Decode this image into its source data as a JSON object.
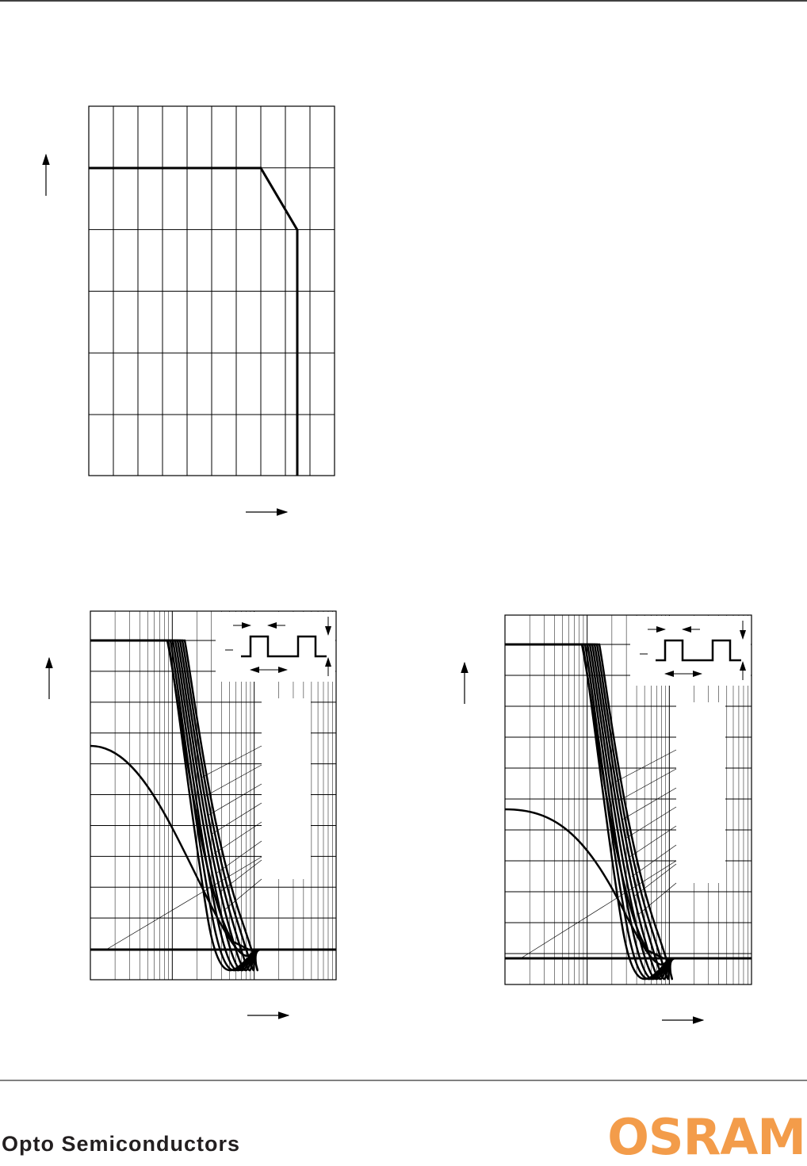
{
  "footer": {
    "company": "Opto Semiconductors",
    "logo": "OSRAM"
  }
}
